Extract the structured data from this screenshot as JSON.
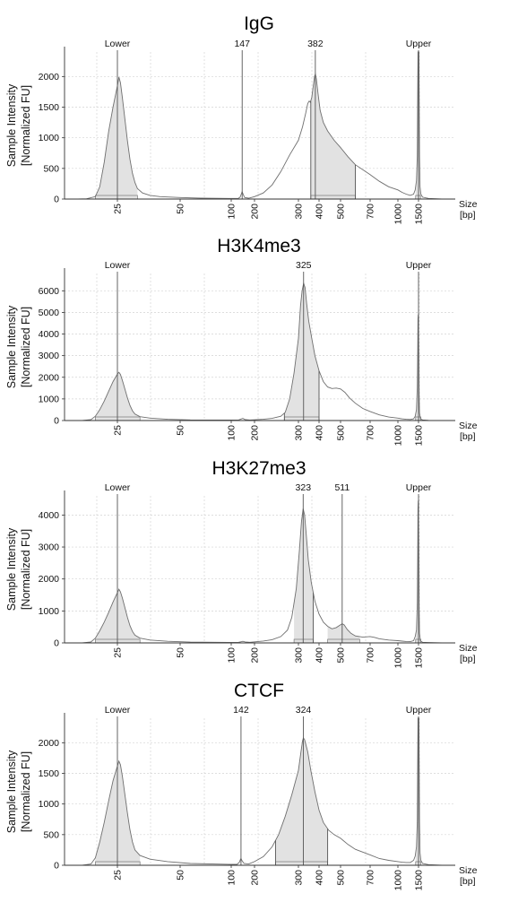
{
  "chart_data": [
    {
      "type": "area",
      "title": "IgG",
      "ylabel": [
        "Sample Intensity",
        "[Normalized FU]"
      ],
      "xlabel": [
        "Size",
        "[bp]"
      ],
      "ylim": [
        0,
        2400
      ],
      "y_ticks": [
        0,
        500,
        1000,
        1500,
        2000
      ],
      "x_ticks": [
        "25",
        "50",
        "100",
        "200",
        "300",
        "400",
        "500",
        "700",
        "1000",
        "1500"
      ],
      "grid": true,
      "peak_labels": [
        {
          "label": "Lower",
          "x": 25
        },
        {
          "label": "147",
          "x": 147
        },
        {
          "label": "382",
          "x": 382
        },
        {
          "label": "Upper",
          "x": 1500
        }
      ],
      "points": [
        [
          13,
          0
        ],
        [
          16,
          0
        ],
        [
          18,
          5
        ],
        [
          20,
          40
        ],
        [
          21,
          200
        ],
        [
          22,
          600
        ],
        [
          23,
          1100
        ],
        [
          24,
          1500
        ],
        [
          25,
          1850
        ],
        [
          25.6,
          1990
        ],
        [
          26.2,
          1900
        ],
        [
          27,
          1650
        ],
        [
          28,
          1300
        ],
        [
          29,
          950
        ],
        [
          30,
          650
        ],
        [
          31,
          420
        ],
        [
          32,
          270
        ],
        [
          33,
          170
        ],
        [
          35,
          100
        ],
        [
          38,
          60
        ],
        [
          42,
          40
        ],
        [
          50,
          25
        ],
        [
          70,
          15
        ],
        [
          100,
          10
        ],
        [
          130,
          10
        ],
        [
          138,
          30
        ],
        [
          143,
          80
        ],
        [
          147,
          120
        ],
        [
          152,
          70
        ],
        [
          158,
          25
        ],
        [
          175,
          15
        ],
        [
          200,
          40
        ],
        [
          220,
          100
        ],
        [
          240,
          230
        ],
        [
          260,
          450
        ],
        [
          280,
          720
        ],
        [
          300,
          960
        ],
        [
          320,
          1180
        ],
        [
          335,
          1400
        ],
        [
          345,
          1560
        ],
        [
          352,
          1600
        ],
        [
          358,
          1580
        ],
        [
          365,
          1660
        ],
        [
          372,
          1850
        ],
        [
          378,
          2000
        ],
        [
          382,
          2040
        ],
        [
          387,
          1960
        ],
        [
          395,
          1720
        ],
        [
          405,
          1450
        ],
        [
          420,
          1250
        ],
        [
          440,
          1110
        ],
        [
          470,
          960
        ],
        [
          500,
          840
        ],
        [
          550,
          690
        ],
        [
          600,
          560
        ],
        [
          700,
          400
        ],
        [
          800,
          290
        ],
        [
          900,
          200
        ],
        [
          1000,
          150
        ],
        [
          1100,
          110
        ],
        [
          1200,
          80
        ],
        [
          1300,
          60
        ],
        [
          1380,
          80
        ],
        [
          1420,
          150
        ],
        [
          1450,
          300
        ],
        [
          1470,
          700
        ],
        [
          1480,
          1800
        ],
        [
          1488,
          2400
        ],
        [
          1500,
          2400
        ],
        [
          1512,
          2400
        ],
        [
          1520,
          1800
        ],
        [
          1530,
          700
        ],
        [
          1545,
          200
        ],
        [
          1570,
          80
        ],
        [
          1620,
          30
        ],
        [
          1800,
          10
        ],
        [
          2200,
          0
        ],
        [
          2600,
          0
        ]
      ],
      "shaded_ranges": [
        [
          20,
          33
        ],
        [
          360,
          600
        ],
        [
          1430,
          1560
        ]
      ],
      "dividers": [
        360,
        600
      ]
    },
    {
      "type": "area",
      "title": "H3K4me3",
      "ylabel": [
        "Sample Intensity",
        "[Normalized FU]"
      ],
      "xlabel": [
        "Size",
        "[bp]"
      ],
      "ylim": [
        0,
        6800
      ],
      "y_ticks": [
        0,
        1000,
        2000,
        3000,
        4000,
        5000,
        6000
      ],
      "x_ticks": [
        "25",
        "50",
        "100",
        "200",
        "300",
        "400",
        "500",
        "700",
        "1000",
        "1500"
      ],
      "grid": true,
      "peak_labels": [
        {
          "label": "Lower",
          "x": 25
        },
        {
          "label": "325",
          "x": 325
        },
        {
          "label": "Upper",
          "x": 1500
        }
      ],
      "points": [
        [
          13,
          0
        ],
        [
          17,
          0
        ],
        [
          19,
          40
        ],
        [
          20,
          200
        ],
        [
          21,
          500
        ],
        [
          22,
          900
        ],
        [
          23,
          1350
        ],
        [
          24,
          1800
        ],
        [
          25,
          2150
        ],
        [
          25.6,
          2230
        ],
        [
          26.2,
          2130
        ],
        [
          27,
          1850
        ],
        [
          28,
          1450
        ],
        [
          29,
          1050
        ],
        [
          30,
          700
        ],
        [
          31,
          450
        ],
        [
          32,
          300
        ],
        [
          34,
          180
        ],
        [
          38,
          110
        ],
        [
          45,
          60
        ],
        [
          60,
          30
        ],
        [
          100,
          20
        ],
        [
          130,
          20
        ],
        [
          145,
          80
        ],
        [
          150,
          100
        ],
        [
          160,
          40
        ],
        [
          180,
          25
        ],
        [
          220,
          60
        ],
        [
          240,
          100
        ],
        [
          260,
          200
        ],
        [
          270,
          380
        ],
        [
          280,
          1000
        ],
        [
          290,
          2200
        ],
        [
          300,
          3800
        ],
        [
          310,
          5300
        ],
        [
          318,
          6000
        ],
        [
          325,
          6350
        ],
        [
          332,
          6150
        ],
        [
          340,
          5400
        ],
        [
          350,
          4600
        ],
        [
          365,
          3800
        ],
        [
          380,
          3000
        ],
        [
          400,
          2300
        ],
        [
          420,
          1800
        ],
        [
          440,
          1550
        ],
        [
          460,
          1480
        ],
        [
          480,
          1500
        ],
        [
          500,
          1460
        ],
        [
          530,
          1300
        ],
        [
          560,
          1050
        ],
        [
          600,
          800
        ],
        [
          650,
          560
        ],
        [
          700,
          420
        ],
        [
          800,
          260
        ],
        [
          900,
          160
        ],
        [
          1000,
          110
        ],
        [
          1100,
          80
        ],
        [
          1200,
          60
        ],
        [
          1300,
          50
        ],
        [
          1380,
          80
        ],
        [
          1420,
          200
        ],
        [
          1450,
          500
        ],
        [
          1470,
          1500
        ],
        [
          1480,
          3200
        ],
        [
          1488,
          4700
        ],
        [
          1493,
          4900
        ],
        [
          1500,
          4500
        ],
        [
          1508,
          3000
        ],
        [
          1518,
          1200
        ],
        [
          1530,
          350
        ],
        [
          1560,
          80
        ],
        [
          1620,
          30
        ],
        [
          1800,
          10
        ],
        [
          2200,
          0
        ],
        [
          2600,
          0
        ]
      ],
      "shaded_ranges": [
        [
          20,
          34
        ],
        [
          268,
          400
        ],
        [
          1430,
          1570
        ]
      ],
      "dividers": [
        268,
        400
      ]
    },
    {
      "type": "area",
      "title": "H3K27me3",
      "ylabel": [
        "Sample Intensity",
        "[Normalized FU]"
      ],
      "xlabel": [
        "Size",
        "[bp]"
      ],
      "ylim": [
        0,
        4600
      ],
      "y_ticks": [
        0,
        1000,
        2000,
        3000,
        4000
      ],
      "x_ticks": [
        "25",
        "50",
        "100",
        "200",
        "300",
        "400",
        "500",
        "700",
        "1000",
        "1500"
      ],
      "grid": true,
      "peak_labels": [
        {
          "label": "Lower",
          "x": 25
        },
        {
          "label": "323",
          "x": 323
        },
        {
          "label": "511",
          "x": 511
        },
        {
          "label": "Upper",
          "x": 1500
        }
      ],
      "points": [
        [
          13,
          0
        ],
        [
          17,
          0
        ],
        [
          19,
          30
        ],
        [
          20,
          150
        ],
        [
          21,
          380
        ],
        [
          22,
          650
        ],
        [
          23,
          950
        ],
        [
          24,
          1280
        ],
        [
          25,
          1570
        ],
        [
          25.6,
          1680
        ],
        [
          26.2,
          1600
        ],
        [
          27,
          1400
        ],
        [
          28,
          1100
        ],
        [
          29,
          800
        ],
        [
          30,
          540
        ],
        [
          31,
          360
        ],
        [
          32,
          240
        ],
        [
          34,
          150
        ],
        [
          38,
          90
        ],
        [
          45,
          50
        ],
        [
          60,
          25
        ],
        [
          100,
          15
        ],
        [
          130,
          15
        ],
        [
          145,
          40
        ],
        [
          150,
          50
        ],
        [
          160,
          30
        ],
        [
          180,
          20
        ],
        [
          220,
          60
        ],
        [
          240,
          100
        ],
        [
          260,
          200
        ],
        [
          275,
          400
        ],
        [
          285,
          800
        ],
        [
          295,
          1700
        ],
        [
          305,
          2900
        ],
        [
          315,
          3800
        ],
        [
          323,
          4200
        ],
        [
          330,
          4000
        ],
        [
          338,
          3400
        ],
        [
          348,
          2600
        ],
        [
          362,
          1900
        ],
        [
          380,
          1300
        ],
        [
          400,
          900
        ],
        [
          420,
          650
        ],
        [
          440,
          520
        ],
        [
          460,
          440
        ],
        [
          480,
          480
        ],
        [
          500,
          570
        ],
        [
          511,
          600
        ],
        [
          525,
          560
        ],
        [
          545,
          420
        ],
        [
          570,
          300
        ],
        [
          600,
          220
        ],
        [
          650,
          180
        ],
        [
          700,
          200
        ],
        [
          750,
          170
        ],
        [
          800,
          130
        ],
        [
          900,
          90
        ],
        [
          1000,
          70
        ],
        [
          1100,
          55
        ],
        [
          1200,
          45
        ],
        [
          1300,
          40
        ],
        [
          1380,
          70
        ],
        [
          1420,
          200
        ],
        [
          1450,
          400
        ],
        [
          1470,
          1200
        ],
        [
          1480,
          2800
        ],
        [
          1488,
          4200
        ],
        [
          1493,
          4450
        ],
        [
          1500,
          4100
        ],
        [
          1508,
          2800
        ],
        [
          1518,
          1100
        ],
        [
          1530,
          300
        ],
        [
          1560,
          60
        ],
        [
          1620,
          20
        ],
        [
          1800,
          10
        ],
        [
          2200,
          0
        ],
        [
          2600,
          0
        ]
      ],
      "shaded_ranges": [
        [
          20,
          34
        ],
        [
          290,
          372
        ],
        [
          440,
          630
        ],
        [
          1430,
          1570
        ]
      ],
      "dividers": [
        372
      ]
    },
    {
      "type": "area",
      "title": "CTCF",
      "ylabel": [
        "Sample Intensity",
        "[Normalized FU]"
      ],
      "xlabel": [
        "Size",
        "[bp]"
      ],
      "ylim": [
        0,
        2400
      ],
      "y_ticks": [
        0,
        500,
        1000,
        1500,
        2000
      ],
      "x_ticks": [
        "25",
        "50",
        "100",
        "200",
        "300",
        "400",
        "500",
        "700",
        "1000",
        "1500"
      ],
      "grid": true,
      "peak_labels": [
        {
          "label": "Lower",
          "x": 25
        },
        {
          "label": "142",
          "x": 142
        },
        {
          "label": "324",
          "x": 324
        },
        {
          "label": "Upper",
          "x": 1500
        }
      ],
      "points": [
        [
          13,
          0
        ],
        [
          17,
          0
        ],
        [
          19,
          20
        ],
        [
          20,
          120
        ],
        [
          21,
          380
        ],
        [
          22,
          700
        ],
        [
          23,
          1050
        ],
        [
          24,
          1380
        ],
        [
          25,
          1620
        ],
        [
          25.6,
          1700
        ],
        [
          26.2,
          1640
        ],
        [
          27,
          1450
        ],
        [
          28,
          1150
        ],
        [
          29,
          850
        ],
        [
          30,
          580
        ],
        [
          31,
          380
        ],
        [
          32,
          250
        ],
        [
          34,
          160
        ],
        [
          38,
          100
        ],
        [
          45,
          60
        ],
        [
          60,
          30
        ],
        [
          100,
          15
        ],
        [
          125,
          15
        ],
        [
          135,
          50
        ],
        [
          140,
          100
        ],
        [
          142,
          110
        ],
        [
          147,
          70
        ],
        [
          155,
          30
        ],
        [
          175,
          20
        ],
        [
          200,
          60
        ],
        [
          220,
          140
        ],
        [
          240,
          300
        ],
        [
          255,
          500
        ],
        [
          270,
          800
        ],
        [
          285,
          1150
        ],
        [
          300,
          1550
        ],
        [
          312,
          1850
        ],
        [
          320,
          2030
        ],
        [
          324,
          2080
        ],
        [
          330,
          2050
        ],
        [
          345,
          1850
        ],
        [
          360,
          1550
        ],
        [
          380,
          1200
        ],
        [
          400,
          900
        ],
        [
          420,
          700
        ],
        [
          445,
          570
        ],
        [
          470,
          500
        ],
        [
          500,
          440
        ],
        [
          550,
          340
        ],
        [
          600,
          260
        ],
        [
          700,
          170
        ],
        [
          800,
          110
        ],
        [
          900,
          80
        ],
        [
          1000,
          60
        ],
        [
          1100,
          50
        ],
        [
          1200,
          45
        ],
        [
          1300,
          45
        ],
        [
          1380,
          80
        ],
        [
          1420,
          150
        ],
        [
          1450,
          300
        ],
        [
          1470,
          700
        ],
        [
          1480,
          1800
        ],
        [
          1488,
          2400
        ],
        [
          1500,
          2400
        ],
        [
          1512,
          2400
        ],
        [
          1520,
          1800
        ],
        [
          1530,
          700
        ],
        [
          1545,
          200
        ],
        [
          1570,
          80
        ],
        [
          1620,
          30
        ],
        [
          1800,
          10
        ],
        [
          2200,
          0
        ],
        [
          2600,
          0
        ]
      ],
      "shaded_ranges": [
        [
          20,
          34
        ],
        [
          248,
          440
        ],
        [
          1430,
          1570
        ]
      ],
      "dividers": [
        248,
        440
      ]
    }
  ]
}
